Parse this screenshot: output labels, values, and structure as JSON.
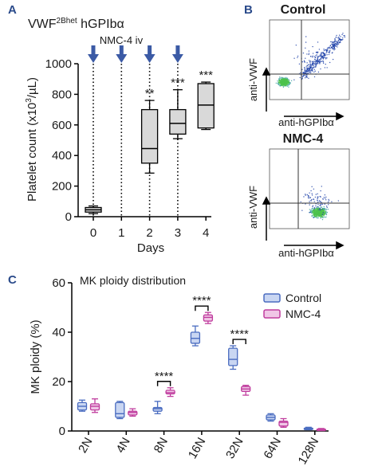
{
  "colors": {
    "gray": "#d9d9d9",
    "blue_arrow": "#3b5aa5",
    "control": "#4a6cc0",
    "control_fill": "#c9d6f2",
    "nmc4": "#c03d9e",
    "nmc4_fill": "#f0c6e6",
    "letter_color": "#2a4a8a",
    "flow_lo": "#1c3fa8",
    "flow_hi": "#4cc24c"
  },
  "panels": {
    "a": {
      "letter": "A"
    },
    "b": {
      "letter": "B",
      "title_top": "Control",
      "title_bottom": "NMC-4",
      "ylab": "anti-VWF",
      "xlab": "anti-hGPIbα"
    },
    "c": {
      "letter": "C"
    }
  },
  "chart_data": [
    {
      "type": "box",
      "title": "VWF",
      "title_sup": "2Bhet",
      "title_suffix": " hGPIbα",
      "annotation": "NMC-4 iv",
      "injection_days": [
        0,
        1,
        2,
        3
      ],
      "xlabel": "Days",
      "ylabel": "Platelet count (x10",
      "ylabel_sup": "3",
      "ylabel_suffix": "/µL)",
      "x": [
        0,
        1,
        2,
        3,
        4
      ],
      "x_ticks": [
        "0",
        "1",
        "2",
        "3",
        "4"
      ],
      "ylim": [
        0,
        1000
      ],
      "y_ticks": [
        "0",
        "200",
        "400",
        "600",
        "800",
        "1000"
      ],
      "y_tick_values": [
        0,
        200,
        400,
        600,
        800,
        1000
      ],
      "boxes": [
        {
          "day": 0,
          "min": 20,
          "q1": 30,
          "median": 45,
          "q3": 60,
          "max": 70,
          "sig": ""
        },
        {
          "day": 2,
          "min": 285,
          "q1": 350,
          "median": 445,
          "q3": 700,
          "max": 760,
          "sig": "**"
        },
        {
          "day": 3,
          "min": 510,
          "q1": 540,
          "median": 610,
          "q3": 700,
          "max": 830,
          "sig": "***"
        },
        {
          "day": 4,
          "min": 570,
          "q1": 580,
          "median": 730,
          "q3": 870,
          "max": 880,
          "sig": "***"
        }
      ]
    },
    {
      "type": "box",
      "title": "MK ploidy distribution",
      "ylabel": "MK ploidy (%)",
      "xlabel": "",
      "categories": [
        "2N",
        "4N",
        "8N",
        "16N",
        "32N",
        "64N",
        "128N"
      ],
      "ylim": [
        0,
        60
      ],
      "y_ticks": [
        "0",
        "20",
        "40",
        "60"
      ],
      "y_tick_values": [
        0,
        20,
        40,
        60
      ],
      "series": [
        {
          "name": "Control",
          "boxes": [
            {
              "min": 8,
              "q1": 8.5,
              "median": 10,
              "q3": 11.5,
              "max": 12.5
            },
            {
              "min": 5,
              "q1": 5.5,
              "median": 7,
              "q3": 11.5,
              "max": 12
            },
            {
              "min": 7,
              "q1": 8,
              "median": 9,
              "q3": 9.5,
              "max": 12
            },
            {
              "min": 34.5,
              "q1": 35.5,
              "median": 37.5,
              "q3": 40,
              "max": 42.5
            },
            {
              "min": 25,
              "q1": 26.5,
              "median": 29,
              "q3": 33.5,
              "max": 34.5
            },
            {
              "min": 4,
              "q1": 4.5,
              "median": 5.5,
              "q3": 6.5,
              "max": 7
            },
            {
              "min": 0.5,
              "q1": 0.7,
              "median": 0.9,
              "q3": 1.2,
              "max": 1.5
            }
          ]
        },
        {
          "name": "NMC-4",
          "boxes": [
            {
              "min": 7.5,
              "q1": 8.5,
              "median": 10,
              "q3": 11,
              "max": 13
            },
            {
              "min": 6,
              "q1": 6.5,
              "median": 7.5,
              "q3": 8,
              "max": 9
            },
            {
              "min": 14,
              "q1": 15,
              "median": 15.5,
              "q3": 16.5,
              "max": 17.5
            },
            {
              "min": 43.5,
              "q1": 44.5,
              "median": 46,
              "q3": 47,
              "max": 48
            },
            {
              "min": 14.5,
              "q1": 16,
              "median": 17,
              "q3": 18,
              "max": 18.5
            },
            {
              "min": 1.5,
              "q1": 2,
              "median": 3.5,
              "q3": 4,
              "max": 5
            },
            {
              "min": 0.2,
              "q1": 0.4,
              "median": 0.6,
              "q3": 0.8,
              "max": 1
            }
          ]
        }
      ],
      "significance": [
        {
          "category": "8N",
          "label": "****"
        },
        {
          "category": "16N",
          "label": "****"
        },
        {
          "category": "32N",
          "label": "****"
        }
      ],
      "legend": "top-right"
    }
  ]
}
